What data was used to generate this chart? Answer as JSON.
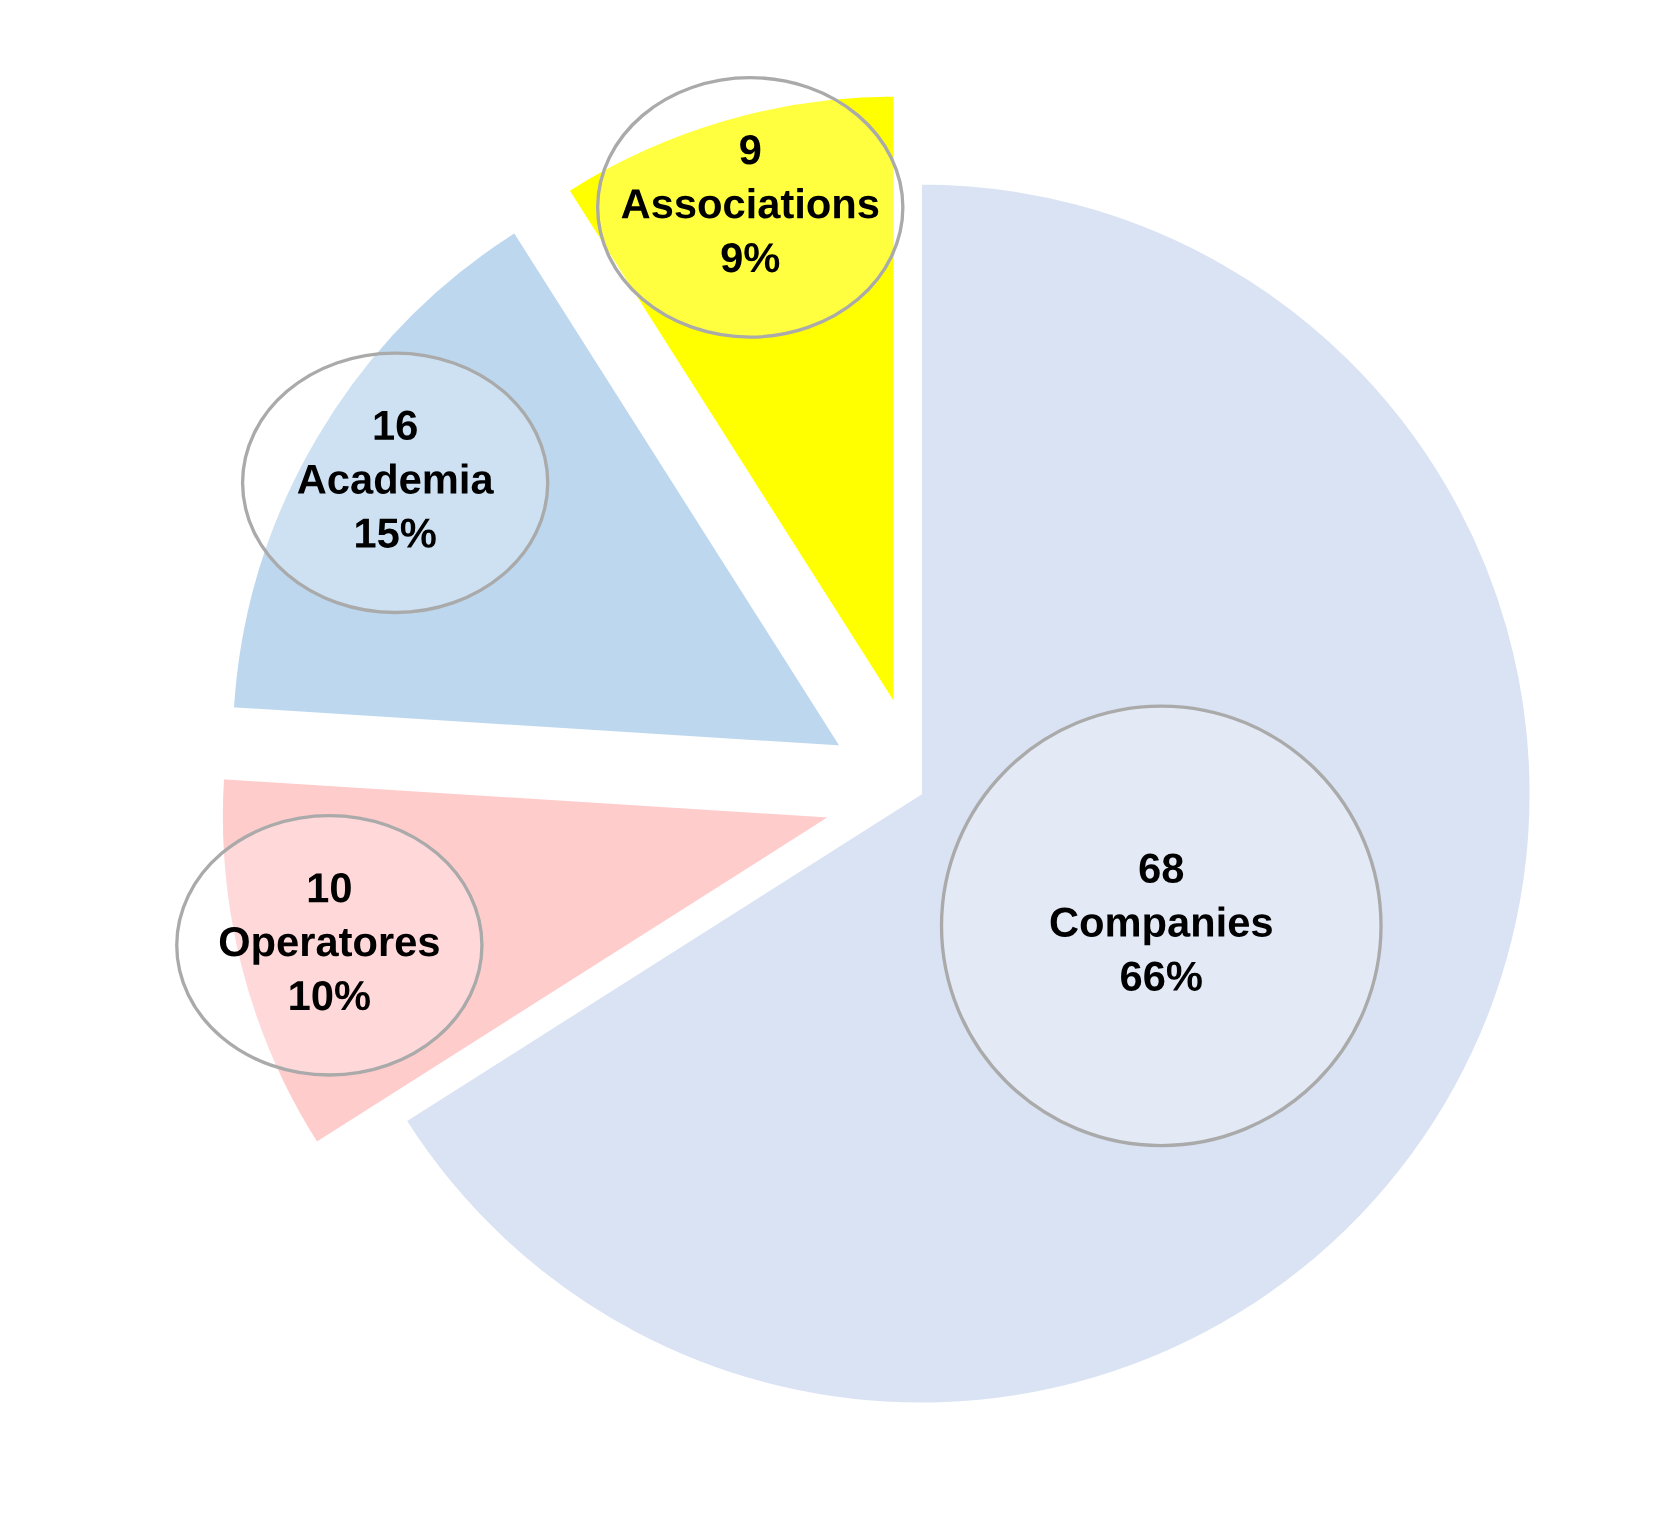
{
  "chart_data": {
    "type": "pie",
    "categories": [
      "Companies",
      "Operatores",
      "Academia",
      "Associations"
    ],
    "values": [
      66,
      10,
      15,
      9
    ],
    "value_labels": [
      "66%",
      "10%",
      "15%",
      "9%"
    ],
    "annotations": [
      "68",
      "10",
      "16",
      "9"
    ],
    "colors": [
      "#dae3f3",
      "#ffcccc",
      "#bdd7ee",
      "#ffff00"
    ]
  }
}
